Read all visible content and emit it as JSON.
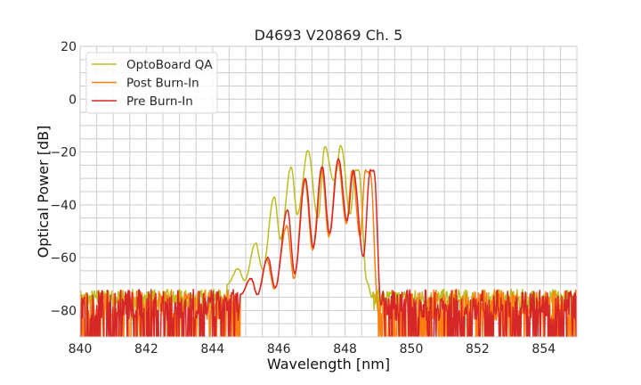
{
  "chart_data": {
    "type": "line",
    "title": "D4693 V20869 Ch. 5",
    "xlabel": "Wavelength [nm]",
    "ylabel": "Optical Power [dB]",
    "xlim": [
      840,
      855
    ],
    "ylim": [
      -90,
      20
    ],
    "xticks": [
      "840",
      "842",
      "844",
      "846",
      "848",
      "850",
      "852",
      "854"
    ],
    "yticks": [
      "20",
      "0",
      "−20",
      "−40",
      "−60",
      "−80"
    ],
    "grid": true,
    "legend_position": "top-left",
    "series": [
      {
        "name": "OptoBoard QA",
        "color": "#bcbd22",
        "signal_range_nm": [
          844.44,
          848.82
        ],
        "noise_floor_db": [
          -80,
          -72
        ],
        "x": [
          844.44,
          844.76,
          844.97,
          845.3,
          845.51,
          845.86,
          846.05,
          846.37,
          846.56,
          846.88,
          847.18,
          847.39,
          847.66,
          847.88,
          848.15,
          848.31,
          848.41,
          848.66,
          848.82
        ],
        "y": [
          -70,
          -64.3,
          -68.7,
          -54.6,
          -64.7,
          -37,
          -53,
          -25.5,
          -43.5,
          -19.5,
          -45,
          -18,
          -31,
          -17.5,
          -43.5,
          -27,
          -27,
          -69,
          -75
        ]
      },
      {
        "name": "Post Burn-In",
        "color": "#ff7f0e",
        "signal_range_nm": [
          844.84,
          849.0
        ],
        "noise_floor_db": [
          -90,
          -72
        ],
        "x": [
          844.84,
          845.16,
          845.35,
          845.64,
          845.87,
          846.24,
          846.46,
          846.78,
          847.02,
          847.29,
          847.51,
          847.78,
          848.04,
          848.22,
          848.45,
          848.62,
          848.76,
          849.0
        ],
        "y": [
          -74,
          -68,
          -74,
          -61,
          -72,
          -48,
          -68,
          -30,
          -57,
          -26,
          -52,
          -23.5,
          -47,
          -27,
          -52,
          -27,
          -28,
          -80
        ]
      },
      {
        "name": "Pre Burn-In",
        "color": "#d62728",
        "signal_range_nm": [
          844.84,
          849.09
        ],
        "noise_floor_db": [
          -90,
          -72
        ],
        "x": [
          844.84,
          845.16,
          845.35,
          845.67,
          845.89,
          846.26,
          846.48,
          846.8,
          847.04,
          847.31,
          847.53,
          847.8,
          848.06,
          848.25,
          848.55,
          848.76,
          848.87,
          849.09
        ],
        "y": [
          -74,
          -68,
          -74,
          -60,
          -71.5,
          -41.7,
          -66,
          -30,
          -56,
          -25.5,
          -51,
          -22.5,
          -46,
          -27,
          -59.6,
          -27,
          -27,
          -78
        ]
      }
    ]
  }
}
